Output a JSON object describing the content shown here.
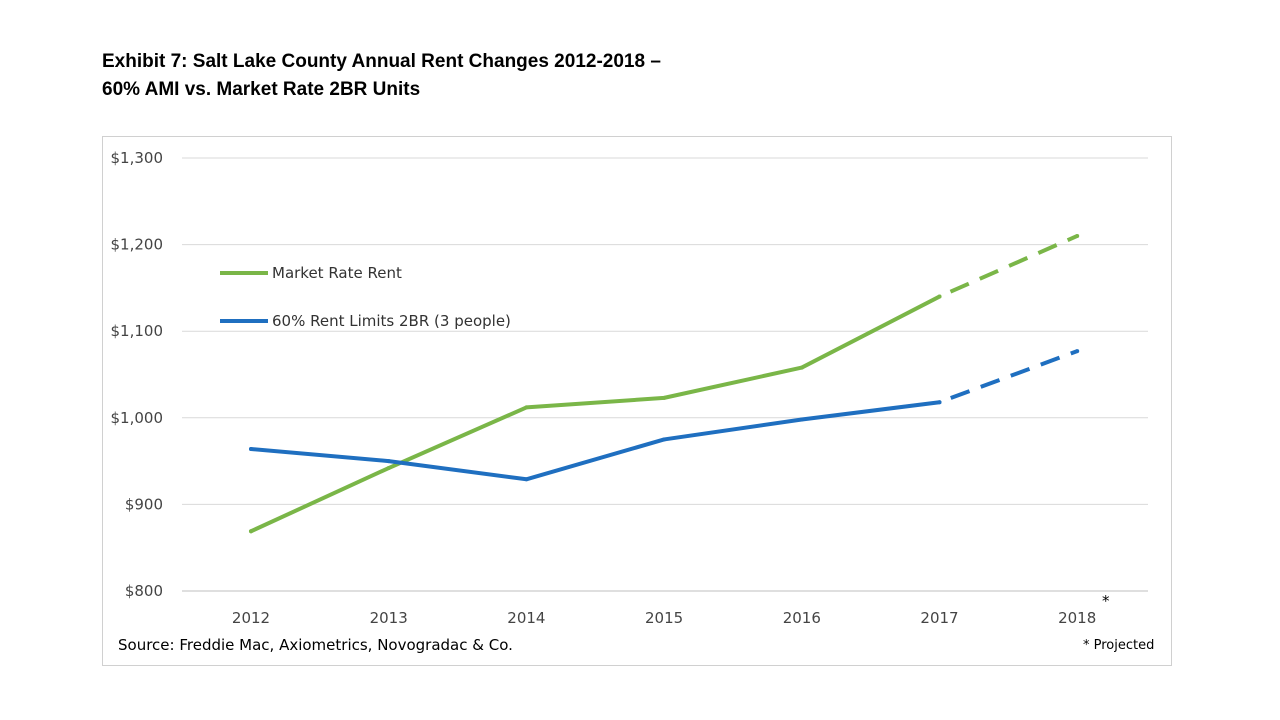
{
  "title": {
    "line1": "Exhibit 7: Salt Lake County Annual Rent Changes 2012-2018 –",
    "line2": "60% AMI vs. Market Rate 2BR Units"
  },
  "source": "Source: Freddie Mac, Axiometrics, Novogradac & Co.",
  "footnote": "* Projected",
  "projection_marker": "*",
  "chart_data": {
    "type": "line",
    "categories": [
      "2012",
      "2013",
      "2014",
      "2015",
      "2016",
      "2017",
      "2018"
    ],
    "ylim": [
      800,
      1300
    ],
    "yticks": [
      800,
      900,
      1000,
      1100,
      1200,
      1300
    ],
    "ytick_labels": [
      "$800",
      "$900",
      "$1,000",
      "$1,100",
      "$1,200",
      "$1,300"
    ],
    "grid": true,
    "legend_position": "top-left",
    "projected_categories": [
      "2018"
    ],
    "series": [
      {
        "name": "Market Rate Rent",
        "color": "#7ab648",
        "values": [
          869,
          942,
          1012,
          1023,
          1058,
          1140,
          1210
        ]
      },
      {
        "name": "60% Rent Limits 2BR (3 people)",
        "color": "#1f6fc0",
        "values": [
          964,
          950,
          929,
          975,
          998,
          1018,
          1077
        ]
      }
    ]
  }
}
